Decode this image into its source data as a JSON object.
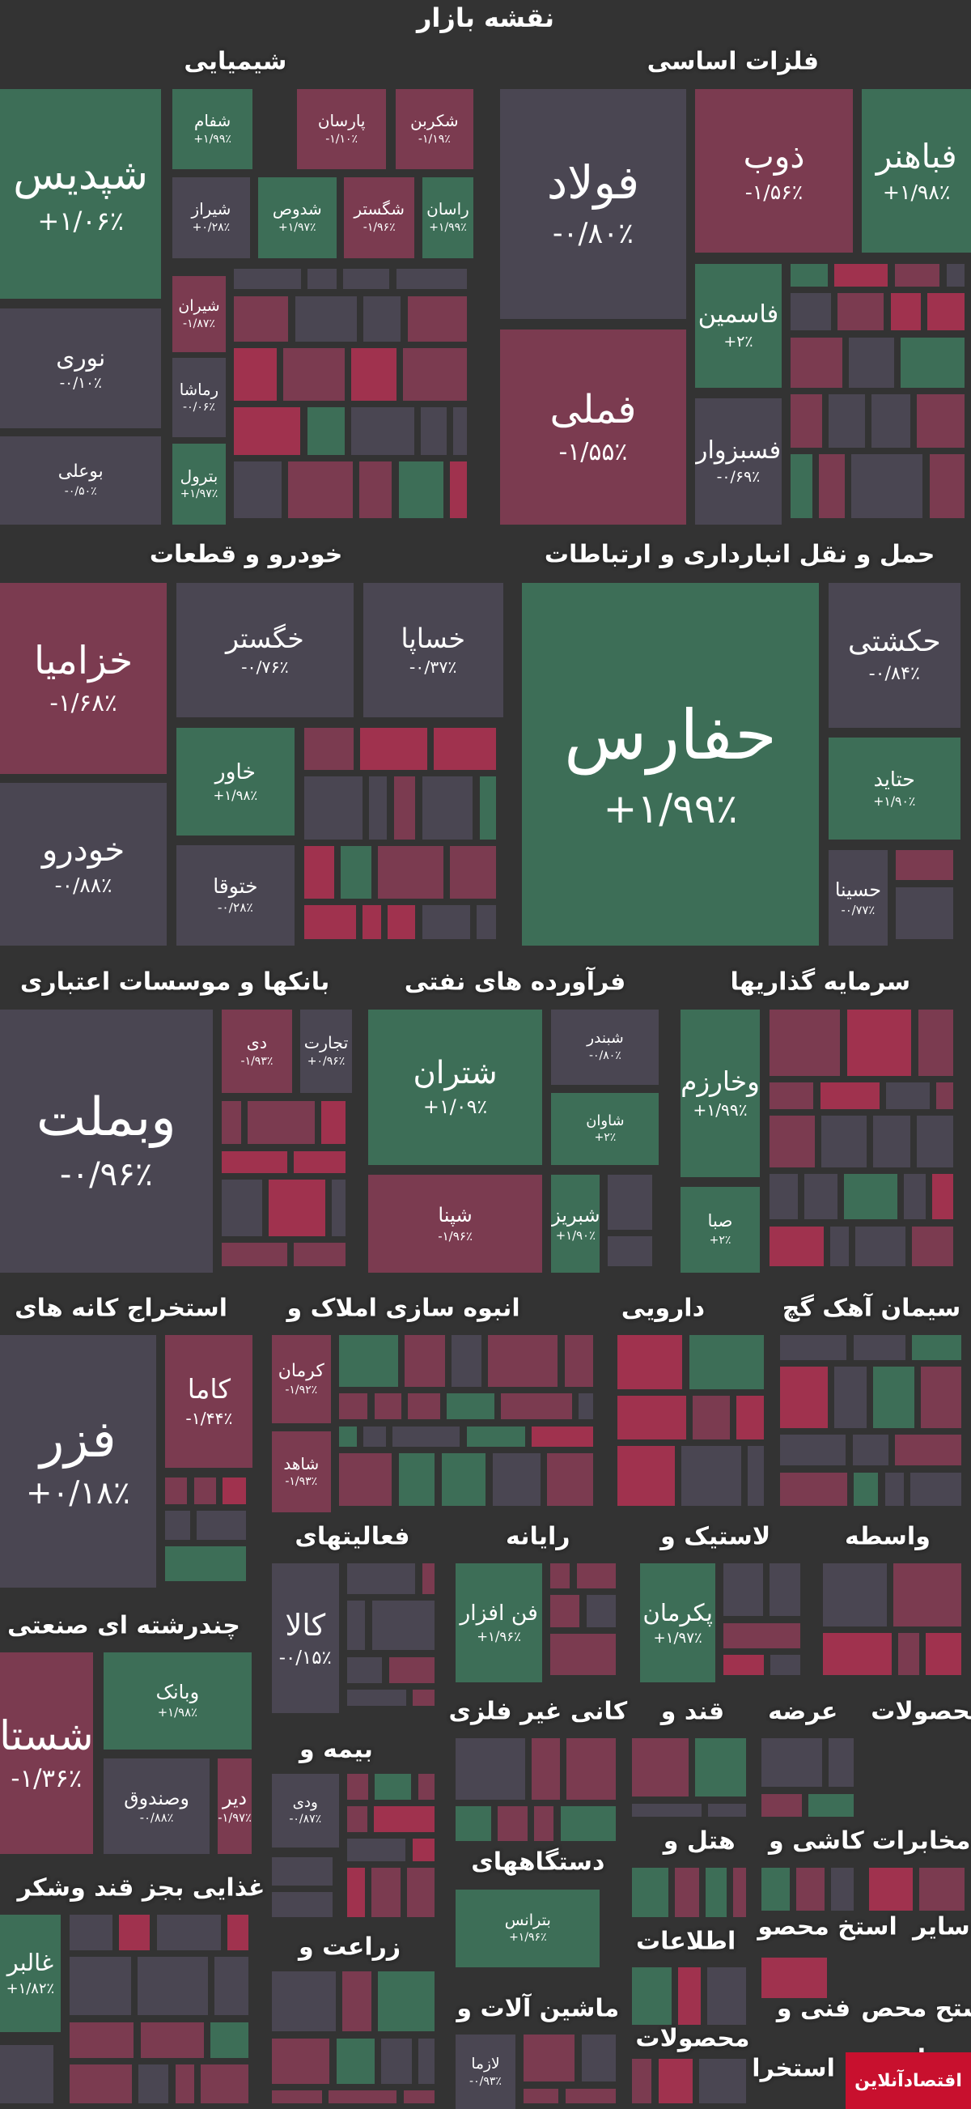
{
  "title": "نقشه بازار",
  "logo": "اقتصادآنلاین",
  "sectors": [
    {
      "title": "شیمیایی",
      "tiles": [
        {
          "name": "شپدیس",
          "change": "+۱/۰۶٪",
          "color": "green"
        },
        {
          "name": "شفام",
          "change": "+۱/۹۹٪",
          "color": "green"
        },
        {
          "name": "پارسان",
          "change": "-۱/۱۰٪",
          "color": "red"
        },
        {
          "name": "شکربن",
          "change": "-۱/۱۹٪",
          "color": "red"
        },
        {
          "name": "شیراز",
          "change": "+۰/۲۸٪",
          "color": "gray"
        },
        {
          "name": "شدوص",
          "change": "+۱/۹۷٪",
          "color": "green"
        },
        {
          "name": "شگستر",
          "change": "-۱/۹۶٪",
          "color": "red"
        },
        {
          "name": "راسان",
          "change": "+۱/۹۹٪",
          "color": "green"
        },
        {
          "name": "نوری",
          "change": "-۰/۱۰٪",
          "color": "gray"
        },
        {
          "name": "بوعلی",
          "change": "-۰/۵۰٪",
          "color": "gray"
        },
        {
          "name": "شیران",
          "change": "-۱/۸۷٪",
          "color": "red"
        },
        {
          "name": "رماشا",
          "change": "-۰/۰۶٪",
          "color": "gray"
        },
        {
          "name": "بترول",
          "change": "+۱/۹۷٪",
          "color": "green"
        }
      ]
    },
    {
      "title": "فلزات اساسی",
      "tiles": [
        {
          "name": "فولاد",
          "change": "-۰/۸۰٪",
          "color": "gray"
        },
        {
          "name": "ذوب",
          "change": "-۱/۵۶٪",
          "color": "red"
        },
        {
          "name": "فباهنر",
          "change": "+۱/۹۸٪",
          "color": "green"
        },
        {
          "name": "فملی",
          "change": "-۱/۵۵٪",
          "color": "red"
        },
        {
          "name": "فاسمین",
          "change": "+۲٪",
          "color": "green"
        },
        {
          "name": "فسبزوار",
          "change": "-۰/۶۹٪",
          "color": "gray"
        }
      ]
    },
    {
      "title": "خودرو و قطعات",
      "tiles": [
        {
          "name": "خزامیا",
          "change": "-۱/۶۸٪",
          "color": "red"
        },
        {
          "name": "خگستر",
          "change": "-۰/۷۶٪",
          "color": "gray"
        },
        {
          "name": "خساپا",
          "change": "-۰/۳۷٪",
          "color": "gray"
        },
        {
          "name": "خودرو",
          "change": "-۰/۸۸٪",
          "color": "gray"
        },
        {
          "name": "خاور",
          "change": "+۱/۹۸٪",
          "color": "green"
        },
        {
          "name": "ختوقا",
          "change": "-۰/۲۸٪",
          "color": "gray"
        }
      ]
    },
    {
      "title": "حمل و نقل انبارداری و ارتباطات",
      "tiles": [
        {
          "name": "حفارس",
          "change": "+۱/۹۹٪",
          "color": "green"
        },
        {
          "name": "حکشتی",
          "change": "-۰/۸۴٪",
          "color": "gray"
        },
        {
          "name": "حتاید",
          "change": "+۱/۹۰٪",
          "color": "green"
        },
        {
          "name": "حسینا",
          "change": "-۰/۷۷٪",
          "color": "gray"
        }
      ]
    },
    {
      "title": "بانکها و موسسات اعتباری",
      "tiles": [
        {
          "name": "وبملت",
          "change": "-۰/۹۶٪",
          "color": "gray"
        },
        {
          "name": "دی",
          "change": "-۱/۹۳٪",
          "color": "red"
        },
        {
          "name": "تجارت",
          "change": "+۰/۹۶٪",
          "color": "gray"
        }
      ]
    },
    {
      "title": "فرآورده های نفتی",
      "tiles": [
        {
          "name": "شتران",
          "change": "+۱/۰۹٪",
          "color": "green"
        },
        {
          "name": "شپنا",
          "change": "-۱/۹۶٪",
          "color": "red"
        },
        {
          "name": "شبندر",
          "change": "-۰/۸۰٪",
          "color": "gray"
        },
        {
          "name": "شاوان",
          "change": "+۲٪",
          "color": "green"
        },
        {
          "name": "شبریز",
          "change": "+۱/۹۰٪",
          "color": "green"
        }
      ]
    },
    {
      "title": "سرمایه گذاریها",
      "tiles": [
        {
          "name": "وخارزم",
          "change": "+۱/۹۹٪",
          "color": "green"
        },
        {
          "name": "صبا",
          "change": "+۲٪",
          "color": "green"
        }
      ]
    },
    {
      "title": "استخراج کانه های",
      "tiles": [
        {
          "name": "فزر",
          "change": "+۰/۱۸٪",
          "color": "gray"
        },
        {
          "name": "کاما",
          "change": "-۱/۴۴٪",
          "color": "red"
        }
      ]
    },
    {
      "title": "انبوه سازی املاک و",
      "tiles": [
        {
          "name": "کرمان",
          "change": "-۱/۹۲٪",
          "color": "red"
        },
        {
          "name": "شاهد",
          "change": "-۱/۹۳٪",
          "color": "red"
        }
      ]
    },
    {
      "title": "دارویی",
      "tiles": []
    },
    {
      "title": "سیمان آهک گچ",
      "tiles": []
    },
    {
      "title": "فعالیتهای",
      "tiles": [
        {
          "name": "کالا",
          "change": "-۰/۱۵٪",
          "color": "gray"
        }
      ]
    },
    {
      "title": "رایانه",
      "tiles": [
        {
          "name": "فن افزار",
          "change": "+۱/۹۶٪",
          "color": "green"
        }
      ]
    },
    {
      "title": "لاستیک و",
      "tiles": [
        {
          "name": "پکرمان",
          "change": "+۱/۹۷٪",
          "color": "green"
        }
      ]
    },
    {
      "title": "واسطه",
      "tiles": []
    },
    {
      "title": "چندرشته ای صنعتی",
      "tiles": [
        {
          "name": "شستا",
          "change": "-۱/۳۶٪",
          "color": "red"
        },
        {
          "name": "وبانک",
          "change": "+۱/۹۸٪",
          "color": "green"
        },
        {
          "name": "وصندوق",
          "change": "-۰/۸۸٪",
          "color": "gray"
        },
        {
          "name": "دیر",
          "change": "-۱/۹۷٪",
          "color": "red"
        }
      ]
    },
    {
      "title": "کانی غیر فلزی",
      "tiles": []
    },
    {
      "title": "قند و",
      "tiles": []
    },
    {
      "title": "عرضه",
      "tiles": []
    },
    {
      "title": "محصولات",
      "tiles": []
    },
    {
      "title": "بیمه و",
      "tiles": [
        {
          "name": "ودی",
          "change": "-۰/۸۷٪",
          "color": "gray"
        }
      ]
    },
    {
      "title": "دستگاههای",
      "tiles": [
        {
          "name": "بترانس",
          "change": "+۱/۹۶٪",
          "color": "green"
        }
      ]
    },
    {
      "title": "هتل و",
      "tiles": []
    },
    {
      "title": "کاشی و",
      "tiles": []
    },
    {
      "title": "مخابرات",
      "tiles": []
    },
    {
      "title": "غذایی بجز قند وشکر",
      "tiles": [
        {
          "name": "غالبر",
          "change": "+۱/۸۲٪",
          "color": "green"
        }
      ]
    },
    {
      "title": "زراعت و",
      "tiles": []
    },
    {
      "title": "اطلاعات",
      "tiles": []
    },
    {
      "title": "محصو",
      "tiles": []
    },
    {
      "title": "استخ",
      "tiles": []
    },
    {
      "title": "سایر",
      "tiles": []
    },
    {
      "title": "ماشین آلات و",
      "tiles": [
        {
          "name": "لازما",
          "change": "-۰/۹۳٪",
          "color": "gray"
        }
      ]
    },
    {
      "title": "محصولات",
      "tiles": []
    },
    {
      "title": "فنی و",
      "tiles": []
    },
    {
      "title": "استح محص",
      "tiles": []
    },
    {
      "title": "استخرا",
      "tiles": []
    },
    {
      "title": "وسا",
      "tiles": []
    }
  ]
}
